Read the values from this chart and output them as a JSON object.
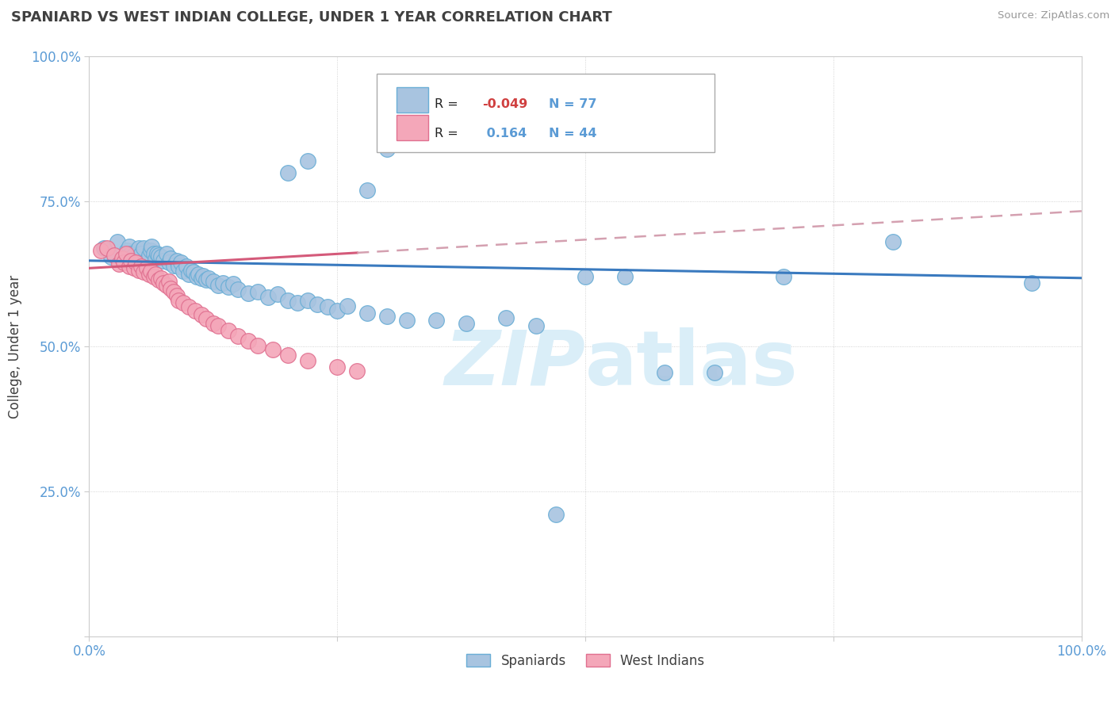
{
  "title": "SPANIARD VS WEST INDIAN COLLEGE, UNDER 1 YEAR CORRELATION CHART",
  "source": "Source: ZipAtlas.com",
  "ylabel": "College, Under 1 year",
  "xlim": [
    0,
    1
  ],
  "ylim": [
    0,
    1
  ],
  "xtick_positions": [
    0.0,
    0.25,
    0.5,
    0.75,
    1.0
  ],
  "xticklabels": [
    "0.0%",
    "",
    "",
    "",
    "100.0%"
  ],
  "ytick_positions": [
    0.0,
    0.25,
    0.5,
    0.75,
    1.0
  ],
  "yticklabels": [
    "",
    "25.0%",
    "50.0%",
    "75.0%",
    "100.0%"
  ],
  "r1": -0.049,
  "r2": 0.164,
  "n1": 77,
  "n2": 44,
  "spaniard_fill": "#a8c4e0",
  "spaniard_edge": "#6aaed6",
  "west_indian_fill": "#f4a7b9",
  "west_indian_edge": "#e07090",
  "trend_blue_color": "#3a7abf",
  "trend_pink_color": "#d45a7a",
  "trend_dashed_color": "#d4a0b0",
  "background_color": "#ffffff",
  "title_color": "#404040",
  "source_color": "#999999",
  "watermark_color": "#daeef8",
  "grid_color": "#c8c8c8",
  "tick_color": "#5b9bd5",
  "spaniards_x": [
    0.015,
    0.022,
    0.028,
    0.033,
    0.038,
    0.04,
    0.042,
    0.045,
    0.048,
    0.05,
    0.05,
    0.052,
    0.055,
    0.058,
    0.06,
    0.062,
    0.063,
    0.065,
    0.067,
    0.068,
    0.07,
    0.072,
    0.075,
    0.078,
    0.08,
    0.082,
    0.085,
    0.088,
    0.09,
    0.092,
    0.095,
    0.098,
    0.1,
    0.103,
    0.105,
    0.108,
    0.11,
    0.113,
    0.115,
    0.118,
    0.12,
    0.125,
    0.13,
    0.135,
    0.14,
    0.145,
    0.15,
    0.16,
    0.17,
    0.18,
    0.19,
    0.2,
    0.21,
    0.22,
    0.23,
    0.24,
    0.25,
    0.26,
    0.28,
    0.3,
    0.32,
    0.35,
    0.38,
    0.42,
    0.45,
    0.5,
    0.54,
    0.58,
    0.63,
    0.7,
    0.2,
    0.22,
    0.28,
    0.3,
    0.47,
    0.81,
    0.95
  ],
  "spaniards_y": [
    0.67,
    0.655,
    0.68,
    0.65,
    0.665,
    0.672,
    0.66,
    0.658,
    0.645,
    0.67,
    0.65,
    0.66,
    0.67,
    0.648,
    0.658,
    0.665,
    0.672,
    0.66,
    0.65,
    0.66,
    0.658,
    0.655,
    0.648,
    0.66,
    0.645,
    0.652,
    0.64,
    0.648,
    0.638,
    0.645,
    0.63,
    0.638,
    0.625,
    0.632,
    0.628,
    0.62,
    0.625,
    0.618,
    0.622,
    0.615,
    0.618,
    0.612,
    0.605,
    0.61,
    0.602,
    0.608,
    0.598,
    0.592,
    0.595,
    0.585,
    0.59,
    0.58,
    0.575,
    0.58,
    0.572,
    0.568,
    0.562,
    0.57,
    0.558,
    0.552,
    0.545,
    0.545,
    0.54,
    0.55,
    0.535,
    0.62,
    0.62,
    0.455,
    0.455,
    0.62,
    0.8,
    0.82,
    0.77,
    0.84,
    0.21,
    0.68,
    0.61
  ],
  "west_indians_x": [
    0.012,
    0.018,
    0.025,
    0.03,
    0.033,
    0.035,
    0.037,
    0.04,
    0.042,
    0.045,
    0.047,
    0.05,
    0.052,
    0.055,
    0.058,
    0.06,
    0.062,
    0.065,
    0.067,
    0.07,
    0.072,
    0.075,
    0.078,
    0.08,
    0.082,
    0.085,
    0.088,
    0.09,
    0.095,
    0.1,
    0.107,
    0.113,
    0.118,
    0.125,
    0.13,
    0.14,
    0.15,
    0.16,
    0.17,
    0.185,
    0.2,
    0.22,
    0.25,
    0.27
  ],
  "west_indians_y": [
    0.665,
    0.67,
    0.658,
    0.642,
    0.652,
    0.645,
    0.66,
    0.638,
    0.648,
    0.635,
    0.645,
    0.632,
    0.638,
    0.628,
    0.635,
    0.625,
    0.63,
    0.62,
    0.625,
    0.615,
    0.618,
    0.61,
    0.605,
    0.612,
    0.6,
    0.595,
    0.588,
    0.58,
    0.575,
    0.568,
    0.562,
    0.555,
    0.548,
    0.54,
    0.535,
    0.528,
    0.518,
    0.51,
    0.502,
    0.495,
    0.485,
    0.475,
    0.465,
    0.458
  ]
}
